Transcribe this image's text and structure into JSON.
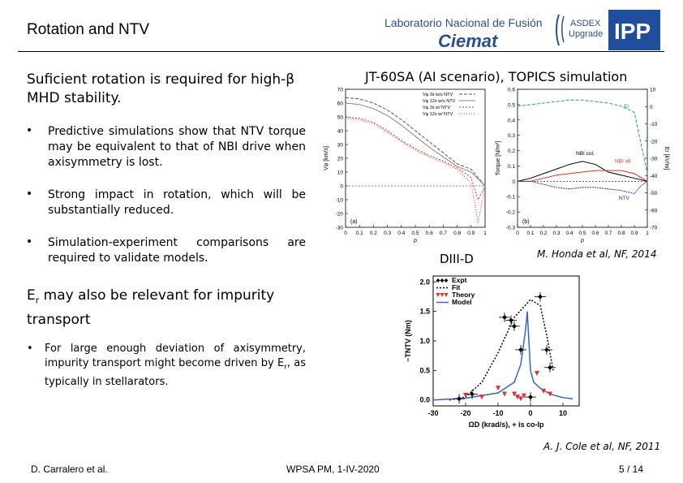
{
  "header": {
    "title": "Rotation and NTV",
    "logo_lnf_line1": "Laboratorio Nacional de Fusión",
    "logo_lnf_line2": "Ciemat",
    "logo_asdex": "ASDEX Upgrade",
    "logo_ipp": "IPP"
  },
  "left": {
    "lead_line1": "Suficient rotation is required for high-β",
    "lead_line2": "MHD stability.",
    "bullets": [
      "Predictive simulations show that NTV torque may be equivalent to that of NBI drive when axisymmetry is lost.",
      "Strong impact in rotation, which will be substantially reduced.",
      "Simulation-experiment comparisons are required to validate models."
    ],
    "er_line1": "E",
    "er_sub": "r",
    "er_line1_rest": " may also be relevant for impurity",
    "er_line2": "transport",
    "sub_bullet_a": "For large enough deviation of axisymmetry, impurity transport might become driven by E",
    "sub_bullet_sub": "r",
    "sub_bullet_b": ", as typically in stellarators."
  },
  "right": {
    "jt_title": "JT-60SA (AI scenario), TOPICS simulation",
    "diii_label": "DIII-D",
    "honda_ref": "M. Honda et al, NF, 2014",
    "cole_ref": "A. J. Cole et al, NF, 2011"
  },
  "footer": {
    "author": "D. Carralero et al.",
    "venue": "WPSA PM, 1-IV-2020",
    "page": "5 / 14"
  },
  "chart_data": [
    {
      "type": "line",
      "panel": "(a)",
      "xlabel": "ρ",
      "ylabel": "Vφ [km/s]",
      "xlim": [
        0,
        1
      ],
      "ylim": [
        -30,
        70
      ],
      "xticks": [
        0,
        0.1,
        0.2,
        0.3,
        0.4,
        0.5,
        0.6,
        0.7,
        0.8,
        0.9,
        1
      ],
      "yticks": [
        -30,
        -20,
        -10,
        0,
        10,
        20,
        30,
        40,
        50,
        60,
        70
      ],
      "legend": [
        "Vφ 3s w/o NTV",
        "Vφ 12s w/o NTV",
        "Vφ 3s w/ NTV",
        "Vφ 12s w/ NTV"
      ],
      "series": [
        {
          "name": "Vφ 3s w/o NTV",
          "color": "#555555",
          "x": [
            0,
            0.1,
            0.2,
            0.3,
            0.4,
            0.5,
            0.6,
            0.7,
            0.8,
            0.9,
            0.95,
            1
          ],
          "values": [
            64,
            63,
            60,
            55,
            48,
            40,
            32,
            24,
            16,
            12,
            6,
            0
          ]
        },
        {
          "name": "Vφ 12s w/o NTV",
          "color": "#888888",
          "x": [
            0,
            0.1,
            0.2,
            0.3,
            0.4,
            0.5,
            0.6,
            0.7,
            0.8,
            0.9,
            0.95,
            1
          ],
          "values": [
            60,
            59,
            56,
            51,
            44,
            36,
            28,
            21,
            14,
            10,
            5,
            0
          ]
        },
        {
          "name": "Vφ 3s w/ NTV",
          "color": "#e03030",
          "x": [
            0,
            0.1,
            0.2,
            0.3,
            0.4,
            0.5,
            0.6,
            0.7,
            0.8,
            0.9,
            0.95,
            1
          ],
          "values": [
            50,
            49,
            46,
            40,
            33,
            27,
            22,
            18,
            13,
            6,
            -10,
            0
          ]
        },
        {
          "name": "Vφ 12s w/ NTV",
          "color": "#e03030",
          "x": [
            0,
            0.1,
            0.2,
            0.3,
            0.4,
            0.5,
            0.6,
            0.7,
            0.8,
            0.9,
            0.95,
            1
          ],
          "values": [
            49,
            48,
            45,
            39,
            32,
            26,
            21,
            17,
            12,
            2,
            -27,
            0
          ]
        }
      ]
    },
    {
      "type": "line",
      "panel": "(b)",
      "xlabel": "ρ",
      "ylabel": "Torque [N/m²]",
      "ylabel_right": "Er [kV/m]",
      "xlim": [
        0,
        1
      ],
      "ylim": [
        -0.3,
        0.6
      ],
      "ylim_right": [
        -70,
        10
      ],
      "xticks": [
        0,
        0.1,
        0.2,
        0.3,
        0.4,
        0.5,
        0.6,
        0.7,
        0.8,
        0.9,
        1
      ],
      "yticks": [
        -0.3,
        -0.2,
        -0.1,
        0,
        0.1,
        0.2,
        0.3,
        0.4,
        0.5,
        0.6
      ],
      "yticks_right": [
        -70,
        -60,
        -50,
        -40,
        -30,
        -20,
        -10,
        0,
        10
      ],
      "series": [
        {
          "name": "Er",
          "color": "#2a9a8a",
          "x": [
            0,
            0.1,
            0.2,
            0.3,
            0.4,
            0.5,
            0.6,
            0.7,
            0.8,
            0.9,
            0.95,
            1
          ],
          "values": [
            0.49,
            0.5,
            0.51,
            0.52,
            0.53,
            0.53,
            0.52,
            0.51,
            0.49,
            0.45,
            0.25,
            0.05
          ]
        },
        {
          "name": "NBI col.",
          "color": "#000000",
          "x": [
            0,
            0.1,
            0.2,
            0.3,
            0.4,
            0.5,
            0.6,
            0.7,
            0.8,
            0.9,
            1
          ],
          "values": [
            0.0,
            0.02,
            0.05,
            0.08,
            0.11,
            0.13,
            0.11,
            0.06,
            0.04,
            0.02,
            0.0
          ]
        },
        {
          "name": "NBI x8",
          "color": "#e03030",
          "x": [
            0,
            0.1,
            0.2,
            0.3,
            0.4,
            0.5,
            0.6,
            0.7,
            0.8,
            0.9,
            1
          ],
          "values": [
            0.0,
            0.0,
            0.02,
            0.04,
            0.05,
            0.06,
            0.07,
            0.07,
            0.07,
            0.05,
            0.0
          ]
        },
        {
          "name": "NTV",
          "color": "#2030c0",
          "x": [
            0,
            0.1,
            0.2,
            0.3,
            0.4,
            0.5,
            0.6,
            0.7,
            0.8,
            0.9,
            0.95,
            1
          ],
          "values": [
            0.0,
            0.0,
            -0.02,
            -0.04,
            -0.05,
            -0.04,
            -0.04,
            -0.05,
            -0.06,
            -0.08,
            -0.03,
            0.0
          ]
        }
      ]
    },
    {
      "type": "scatter",
      "xlabel": "ΩD (krad/s), + is co-Ip",
      "ylabel": "−TNTV (Nm)",
      "xlim": [
        -30,
        15
      ],
      "ylim": [
        -0.1,
        2.1
      ],
      "xticks": [
        -30,
        -20,
        -10,
        0,
        10
      ],
      "yticks": [
        0.0,
        0.5,
        1.0,
        1.5,
        2.0
      ],
      "legend": [
        "Expt",
        "Fit",
        "Theory",
        "Model"
      ],
      "series": [
        {
          "name": "Expt",
          "color": "#000000",
          "x": [
            -22,
            -18,
            -8,
            -6,
            -5,
            -3,
            0,
            3,
            5,
            6
          ],
          "values": [
            0.02,
            0.1,
            1.4,
            1.35,
            1.25,
            0.85,
            0.05,
            1.75,
            0.85,
            0.55
          ]
        },
        {
          "name": "Fit",
          "color": "#000000",
          "x": [
            -25,
            -20,
            -15,
            -10,
            -5,
            0,
            3,
            5,
            7
          ],
          "values": [
            0.0,
            0.05,
            0.3,
            0.8,
            1.4,
            1.7,
            1.6,
            1.1,
            0.5
          ]
        },
        {
          "name": "Theory",
          "color": "#e03030",
          "x": [
            -20,
            -15,
            -10,
            -8,
            -5,
            -4,
            -3,
            -2,
            2,
            4,
            6
          ],
          "values": [
            0.08,
            0.05,
            0.2,
            0.1,
            0.1,
            0.05,
            0.02,
            0.07,
            0.45,
            0.15,
            0.1
          ]
        },
        {
          "name": "Model",
          "color": "#3366cc",
          "x": [
            -30,
            -20,
            -10,
            -5,
            -3,
            -1.5,
            -1,
            -0.5,
            0,
            1,
            3,
            6,
            10,
            13
          ],
          "values": [
            0.0,
            0.03,
            0.12,
            0.3,
            0.6,
            1.2,
            1.5,
            1.0,
            0.5,
            0.3,
            0.2,
            0.1,
            0.04,
            0.02
          ]
        }
      ]
    }
  ]
}
